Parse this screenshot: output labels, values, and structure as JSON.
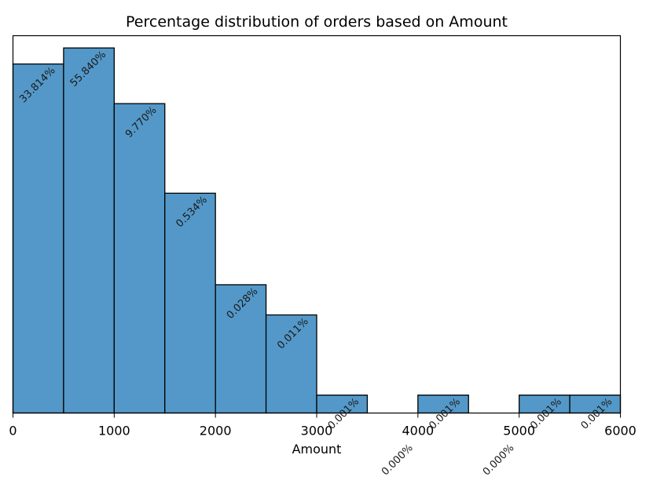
{
  "colors": {
    "bar": "#5398c8",
    "edge": "#000000",
    "background": "#ffffff"
  },
  "chart_data": {
    "type": "bar",
    "title": "Percentage distribution of orders based on Amount",
    "xlabel": "Amount",
    "ylabel": "",
    "xlim": [
      0,
      6000
    ],
    "ylim": [
      0,
      4.0
    ],
    "y_scale": "log (approximate visual)",
    "grid": false,
    "legend": "none",
    "x_ticks": [
      "0",
      "1000",
      "2000",
      "3000",
      "4000",
      "5000",
      "6000"
    ],
    "bins": [
      {
        "start": 0,
        "end": 500,
        "label": "33.814%",
        "height": 3.7
      },
      {
        "start": 500,
        "end": 1000,
        "label": "55.840%",
        "height": 3.87
      },
      {
        "start": 1000,
        "end": 1500,
        "label": "9.770%",
        "height": 3.28
      },
      {
        "start": 1500,
        "end": 2000,
        "label": "0.534%",
        "height": 2.33
      },
      {
        "start": 2000,
        "end": 2500,
        "label": "0.028%",
        "height": 1.36
      },
      {
        "start": 2500,
        "end": 3000,
        "label": "0.011%",
        "height": 1.04
      },
      {
        "start": 3000,
        "end": 3500,
        "label": "0.001%",
        "height": 0.19
      },
      {
        "start": 3500,
        "end": 4000,
        "label": "0.000%",
        "height": 0
      },
      {
        "start": 4000,
        "end": 4500,
        "label": "0.001%",
        "height": 0.19
      },
      {
        "start": 4500,
        "end": 5000,
        "label": "0.000%",
        "height": 0
      },
      {
        "start": 5000,
        "end": 5500,
        "label": "0.001%",
        "height": 0.19
      },
      {
        "start": 5500,
        "end": 6000,
        "label": "0.001%",
        "height": 0.19
      }
    ]
  }
}
